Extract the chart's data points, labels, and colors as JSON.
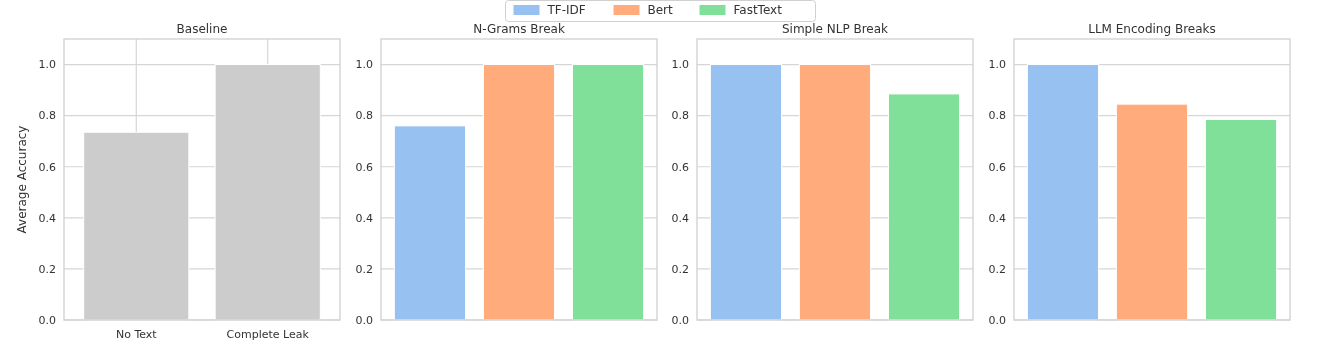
{
  "chart_data": [
    {
      "type": "bar",
      "title": "Baseline",
      "ylabel": "Average Accuracy",
      "categories": [
        "No Text",
        "Complete Leak"
      ],
      "values": [
        0.735,
        1.0
      ],
      "color": "#cccccc",
      "ylim": [
        0,
        1.1
      ],
      "yticks": [
        {
          "value": 0,
          "label": "0.0"
        },
        {
          "value": 0.2,
          "label": "0.2"
        },
        {
          "value": 0.4,
          "label": "0.4"
        },
        {
          "value": 0.6,
          "label": "0.6"
        },
        {
          "value": 0.8,
          "label": "0.8"
        },
        {
          "value": 1,
          "label": "1.0"
        }
      ],
      "grid": true
    },
    {
      "type": "bar",
      "title": "N-Grams Break",
      "categories": [
        null,
        null,
        null
      ],
      "series": [
        {
          "name": "TF-IDF",
          "color": "#97c1f0",
          "values": [
            0.76,
            null,
            null
          ]
        },
        {
          "name": "Bert",
          "color": "#ffab7b",
          "values": [
            null,
            1.0,
            null
          ]
        },
        {
          "name": "FastText",
          "color": "#80e09a",
          "values": [
            null,
            null,
            1.0
          ]
        }
      ],
      "ylim": [
        0,
        1.1
      ],
      "yticks": [
        {
          "value": 0,
          "label": "0.0"
        },
        {
          "value": 0.2,
          "label": "0.2"
        },
        {
          "value": 0.4,
          "label": "0.4"
        },
        {
          "value": 0.6,
          "label": "0.6"
        },
        {
          "value": 0.8,
          "label": "0.8"
        },
        {
          "value": 1,
          "label": "1.0"
        }
      ],
      "grid": "y",
      "legend": "top"
    },
    {
      "type": "bar",
      "title": "Simple NLP Break",
      "categories": [
        null,
        null,
        null
      ],
      "series": [
        {
          "color": "#97c1f0",
          "values": [
            1.0,
            null,
            null
          ]
        },
        {
          "color": "#ffab7b",
          "values": [
            null,
            1.0,
            null
          ]
        },
        {
          "color": "#80e09a",
          "values": [
            null,
            null,
            0.885
          ]
        }
      ],
      "ylim": [
        0,
        1.1
      ],
      "yticks": [
        {
          "value": 0,
          "label": "0.0"
        },
        {
          "value": 0.2,
          "label": "0.2"
        },
        {
          "value": 0.4,
          "label": "0.4"
        },
        {
          "value": 0.6,
          "label": "0.6"
        },
        {
          "value": 0.8,
          "label": "0.8"
        },
        {
          "value": 1,
          "label": "1.0"
        }
      ],
      "grid": "y"
    },
    {
      "type": "bar",
      "title": "LLM Encoding Breaks",
      "categories": [
        null,
        null,
        null
      ],
      "series": [
        {
          "color": "#97c1f0",
          "values": [
            1.0,
            null,
            null
          ]
        },
        {
          "color": "#ffab7b",
          "values": [
            null,
            0.845,
            null
          ]
        },
        {
          "color": "#80e09a",
          "values": [
            null,
            null,
            0.785
          ]
        }
      ],
      "ylim": [
        0,
        1.1
      ],
      "yticks": [
        {
          "value": 0,
          "label": "0.0"
        },
        {
          "value": 0.2,
          "label": "0.2"
        },
        {
          "value": 0.4,
          "label": "0.4"
        },
        {
          "value": 0.6,
          "label": "0.6"
        },
        {
          "value": 0.8,
          "label": "0.8"
        },
        {
          "value": 1,
          "label": "1.0"
        }
      ],
      "grid": "y"
    }
  ]
}
